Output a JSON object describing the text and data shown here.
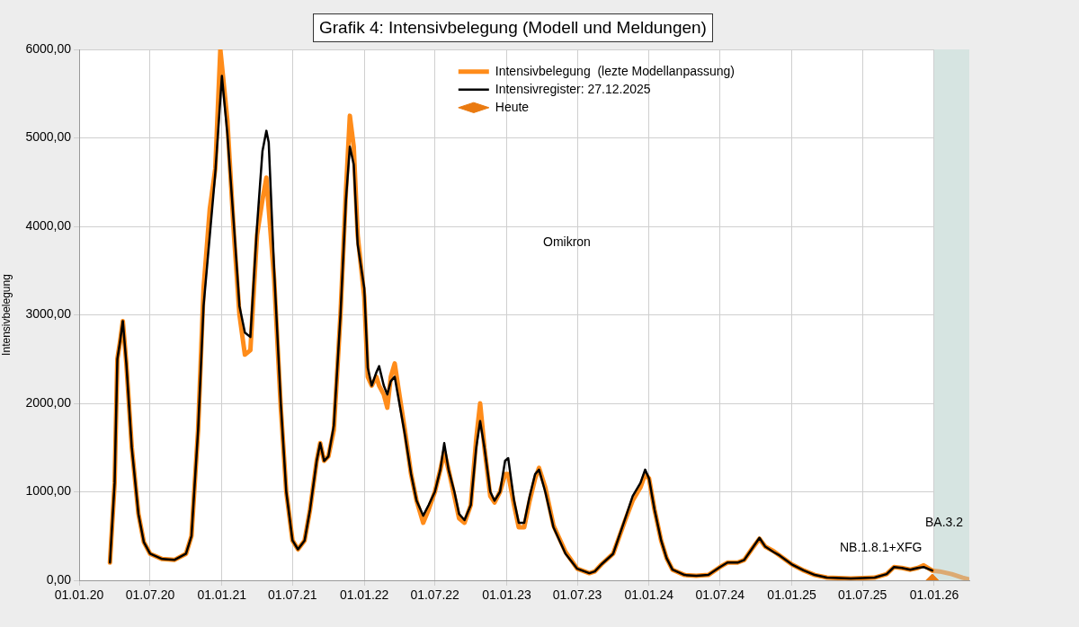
{
  "chart_data": {
    "type": "line",
    "title": "Grafik 4: Intensivbelegung (Modell und Meldungen)",
    "ylabel": "Intensivbelegung",
    "xlim": [
      "2020-01-01",
      "2026-04-01"
    ],
    "xticks": [
      {
        "value": "2020-01-01",
        "label": "01.01.20"
      },
      {
        "value": "2020-07-01",
        "label": "01.07.20"
      },
      {
        "value": "2021-01-01",
        "label": "01.01.21"
      },
      {
        "value": "2021-07-01",
        "label": "01.07.21"
      },
      {
        "value": "2022-01-01",
        "label": "01.01.22"
      },
      {
        "value": "2022-07-01",
        "label": "01.07.22"
      },
      {
        "value": "2023-01-01",
        "label": "01.01.23"
      },
      {
        "value": "2023-07-01",
        "label": "01.07.23"
      },
      {
        "value": "2024-01-01",
        "label": "01.01.24"
      },
      {
        "value": "2024-07-01",
        "label": "01.07.24"
      },
      {
        "value": "2025-01-01",
        "label": "01.01.25"
      },
      {
        "value": "2025-07-01",
        "label": "01.07.25"
      },
      {
        "value": "2026-01-01",
        "label": "01.01.26"
      }
    ],
    "ylim": [
      0,
      6000
    ],
    "yticks": [
      {
        "value": 0,
        "label": "0,00"
      },
      {
        "value": 1000,
        "label": "1000,00"
      },
      {
        "value": 2000,
        "label": "2000,00"
      },
      {
        "value": 3000,
        "label": "3000,00"
      },
      {
        "value": 4000,
        "label": "4000,00"
      },
      {
        "value": 5000,
        "label": "5000,00"
      },
      {
        "value": 6000,
        "label": "6000,00"
      }
    ],
    "grid": true,
    "legend": "top right",
    "bands": [
      {
        "axis": "x",
        "from": "2026-01-01",
        "to": "2026-04-01",
        "color": "#d6e4e1"
      }
    ],
    "annotations": [
      "Omikron",
      "NB.1.8.1+XFG",
      "BA.3.2"
    ],
    "series": [
      {
        "name": "Intensivbelegung  (lezte Modellanpassung)",
        "color": "#ff8c1a",
        "marker": "none",
        "x": [
          "2020-03-20",
          "2020-04-01",
          "2020-04-08",
          "2020-04-15",
          "2020-04-22",
          "2020-05-01",
          "2020-05-15",
          "2020-06-01",
          "2020-06-15",
          "2020-07-01",
          "2020-08-01",
          "2020-09-01",
          "2020-10-01",
          "2020-10-15",
          "2020-11-01",
          "2020-11-15",
          "2020-12-01",
          "2020-12-15",
          "2020-12-28",
          "2021-01-15",
          "2021-02-01",
          "2021-02-15",
          "2021-03-01",
          "2021-03-15",
          "2021-04-01",
          "2021-04-15",
          "2021-04-25",
          "2021-05-01",
          "2021-05-15",
          "2021-06-01",
          "2021-06-15",
          "2021-07-01",
          "2021-07-15",
          "2021-08-01",
          "2021-08-15",
          "2021-09-01",
          "2021-09-10",
          "2021-09-20",
          "2021-10-01",
          "2021-10-15",
          "2021-11-01",
          "2021-11-15",
          "2021-11-25",
          "2021-12-05",
          "2021-12-15",
          "2022-01-01",
          "2022-01-10",
          "2022-01-20",
          "2022-02-01",
          "2022-02-08",
          "2022-02-20",
          "2022-03-01",
          "2022-03-10",
          "2022-03-20",
          "2022-04-01",
          "2022-04-15",
          "2022-05-01",
          "2022-05-15",
          "2022-06-01",
          "2022-06-15",
          "2022-07-01",
          "2022-07-15",
          "2022-07-25",
          "2022-08-05",
          "2022-08-20",
          "2022-09-01",
          "2022-09-15",
          "2022-10-01",
          "2022-10-15",
          "2022-10-25",
          "2022-11-05",
          "2022-11-20",
          "2022-12-01",
          "2022-12-15",
          "2022-12-28",
          "2023-01-05",
          "2023-01-20",
          "2023-02-01",
          "2023-02-15",
          "2023-03-01",
          "2023-03-15",
          "2023-03-25",
          "2023-04-10",
          "2023-05-01",
          "2023-06-01",
          "2023-07-01",
          "2023-08-01",
          "2023-08-15",
          "2023-09-01",
          "2023-10-01",
          "2023-11-01",
          "2023-11-20",
          "2023-12-10",
          "2023-12-22",
          "2024-01-01",
          "2024-01-15",
          "2024-02-01",
          "2024-02-15",
          "2024-03-01",
          "2024-04-01",
          "2024-05-01",
          "2024-06-01",
          "2024-07-01",
          "2024-07-20",
          "2024-08-15",
          "2024-09-01",
          "2024-09-20",
          "2024-10-10",
          "2024-10-25",
          "2024-11-15",
          "2024-12-01",
          "2025-01-01",
          "2025-02-01",
          "2025-03-01",
          "2025-04-01",
          "2025-06-01",
          "2025-08-01",
          "2025-09-01",
          "2025-09-20",
          "2025-10-10",
          "2025-11-01",
          "2025-11-20",
          "2025-12-05",
          "2025-12-27"
        ],
        "values": [
          200,
          1100,
          2500,
          2700,
          2930,
          2450,
          1500,
          750,
          430,
          300,
          240,
          230,
          300,
          500,
          1700,
          3300,
          4200,
          4650,
          6000,
          5200,
          3900,
          3000,
          2550,
          2600,
          3900,
          4300,
          4550,
          4200,
          3400,
          1950,
          1000,
          450,
          350,
          450,
          800,
          1350,
          1550,
          1350,
          1400,
          1700,
          3000,
          4400,
          5250,
          4900,
          3900,
          3200,
          2300,
          2200,
          2300,
          2200,
          2100,
          1950,
          2300,
          2450,
          2100,
          1700,
          1200,
          900,
          650,
          800,
          1000,
          1250,
          1450,
          1250,
          950,
          700,
          650,
          850,
          1600,
          2000,
          1500,
          950,
          880,
          1000,
          1200,
          1200,
          850,
          600,
          600,
          900,
          1150,
          1270,
          1050,
          620,
          320,
          130,
          80,
          100,
          180,
          300,
          680,
          900,
          1050,
          1200,
          1150,
          800,
          450,
          250,
          120,
          60,
          50,
          60,
          150,
          200,
          200,
          230,
          350,
          470,
          380,
          330,
          280,
          180,
          110,
          60,
          30,
          20,
          30,
          70,
          150,
          140,
          120,
          140,
          170,
          110
        ]
      },
      {
        "name": "Intensivregister: 27.12.2025",
        "color": "#000000",
        "marker": "none",
        "x": [
          "2020-03-20",
          "2020-04-01",
          "2020-04-08",
          "2020-04-15",
          "2020-04-22",
          "2020-05-01",
          "2020-05-15",
          "2020-06-01",
          "2020-06-15",
          "2020-07-01",
          "2020-08-01",
          "2020-09-01",
          "2020-10-01",
          "2020-10-15",
          "2020-11-01",
          "2020-11-15",
          "2020-12-01",
          "2020-12-15",
          "2021-01-01",
          "2021-01-15",
          "2021-02-01",
          "2021-02-15",
          "2021-03-01",
          "2021-03-15",
          "2021-04-01",
          "2021-04-15",
          "2021-04-25",
          "2021-05-01",
          "2021-05-15",
          "2021-06-01",
          "2021-06-15",
          "2021-07-01",
          "2021-07-15",
          "2021-08-01",
          "2021-08-15",
          "2021-09-01",
          "2021-09-10",
          "2021-09-20",
          "2021-10-01",
          "2021-10-15",
          "2021-11-01",
          "2021-11-15",
          "2021-11-25",
          "2021-12-05",
          "2021-12-15",
          "2022-01-01",
          "2022-01-10",
          "2022-01-20",
          "2022-02-01",
          "2022-02-08",
          "2022-02-20",
          "2022-03-01",
          "2022-03-10",
          "2022-03-20",
          "2022-04-01",
          "2022-04-15",
          "2022-05-01",
          "2022-05-15",
          "2022-06-01",
          "2022-06-15",
          "2022-07-01",
          "2022-07-15",
          "2022-07-25",
          "2022-08-05",
          "2022-08-20",
          "2022-09-01",
          "2022-09-15",
          "2022-10-01",
          "2022-10-15",
          "2022-10-25",
          "2022-11-05",
          "2022-11-20",
          "2022-12-01",
          "2022-12-15",
          "2022-12-28",
          "2023-01-05",
          "2023-01-20",
          "2023-02-01",
          "2023-02-15",
          "2023-03-01",
          "2023-03-15",
          "2023-03-25",
          "2023-04-10",
          "2023-05-01",
          "2023-06-01",
          "2023-07-01",
          "2023-08-01",
          "2023-08-15",
          "2023-09-01",
          "2023-10-01",
          "2023-11-01",
          "2023-11-20",
          "2023-12-10",
          "2023-12-22",
          "2024-01-01",
          "2024-01-15",
          "2024-02-01",
          "2024-02-15",
          "2024-03-01",
          "2024-04-01",
          "2024-05-01",
          "2024-06-01",
          "2024-07-01",
          "2024-07-20",
          "2024-08-15",
          "2024-09-01",
          "2024-09-20",
          "2024-10-10",
          "2024-10-25",
          "2024-11-15",
          "2024-12-01",
          "2025-01-01",
          "2025-02-01",
          "2025-03-01",
          "2025-04-01",
          "2025-06-01",
          "2025-08-01",
          "2025-09-01",
          "2025-09-20",
          "2025-10-10",
          "2025-11-01",
          "2025-11-20",
          "2025-12-05",
          "2025-12-27"
        ],
        "values": [
          200,
          1100,
          2500,
          2700,
          2930,
          2450,
          1500,
          750,
          430,
          300,
          240,
          230,
          300,
          500,
          1700,
          3100,
          3900,
          4600,
          5700,
          5050,
          4000,
          3100,
          2800,
          2750,
          4000,
          4850,
          5080,
          4950,
          3500,
          2000,
          1000,
          450,
          350,
          450,
          800,
          1350,
          1550,
          1350,
          1400,
          1750,
          3000,
          4300,
          4900,
          4700,
          3800,
          3300,
          2400,
          2200,
          2350,
          2420,
          2200,
          2100,
          2250,
          2300,
          2000,
          1650,
          1200,
          900,
          730,
          850,
          1000,
          1250,
          1550,
          1250,
          1000,
          750,
          680,
          850,
          1500,
          1800,
          1500,
          1000,
          900,
          1000,
          1350,
          1380,
          900,
          650,
          650,
          950,
          1200,
          1250,
          1000,
          600,
          300,
          130,
          80,
          100,
          180,
          300,
          700,
          950,
          1100,
          1250,
          1150,
          800,
          450,
          250,
          120,
          60,
          50,
          60,
          150,
          200,
          200,
          230,
          350,
          480,
          380,
          320,
          280,
          180,
          110,
          60,
          30,
          20,
          30,
          70,
          150,
          140,
          120,
          140,
          150,
          110
        ]
      },
      {
        "color": "#dcaa72",
        "marker": "none",
        "x": [
          "2025-12-27",
          "2026-01-15",
          "2026-02-15",
          "2026-03-15",
          "2026-04-01"
        ],
        "values": [
          110,
          100,
          70,
          30,
          10
        ]
      },
      {
        "name": "Heute",
        "color": "#ea7a10",
        "type": "scatter",
        "marker": "diamond",
        "x": [
          "2025-12-27"
        ],
        "values": [
          0
        ]
      }
    ]
  }
}
